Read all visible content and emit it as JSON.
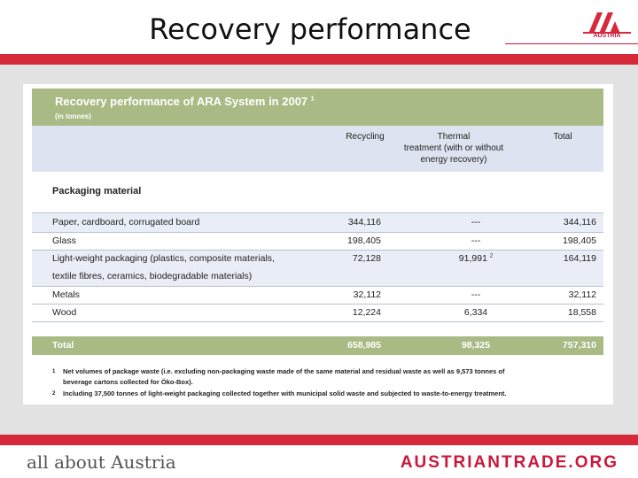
{
  "slide": {
    "title": "Recovery performance",
    "logo_text": "AUSTRIA",
    "footer_left": "all about Austria",
    "footer_right": "AUSTRIANTRADE.ORG"
  },
  "table": {
    "title": "Recovery performance of ARA System in 2007",
    "title_sup": "1",
    "subtitle": "(in tonnes)",
    "headers": {
      "recycling": "Recycling",
      "thermal_line1": "Thermal",
      "thermal_line2": "treatment (with or without",
      "thermal_line3": "energy recovery)",
      "total": "Total"
    },
    "section": "Packaging material",
    "rows": [
      {
        "name": "Paper, cardboard, corrugated board",
        "recycling": "344,116",
        "thermal": "---",
        "total": "344,116"
      },
      {
        "name": "Glass",
        "recycling": "198,405",
        "thermal": "---",
        "total": "198,405"
      },
      {
        "name": "Light-weight packaging (plastics, composite materials,",
        "name2": "textile fibres, ceramics, biodegradable materials)",
        "recycling": "72,128",
        "thermal": "91,991",
        "thermal_sup": "2",
        "total": "164,119"
      },
      {
        "name": "Metals",
        "recycling": "32,112",
        "thermal": "---",
        "total": "32,112"
      },
      {
        "name": "Wood",
        "recycling": "12,224",
        "thermal": "6,334",
        "total": "18,558"
      }
    ],
    "total_row": {
      "name": "Total",
      "recycling": "658,985",
      "thermal": "98,325",
      "total": "757,310"
    },
    "footnotes": [
      {
        "mark": "1",
        "line1": "Net volumes of package waste (i.e. excluding non-packaging waste made of the same material and residual waste as well as 9,573 tonnes of",
        "line2": "beverage cartons collected for Öko-Box)."
      },
      {
        "mark": "2",
        "line1": "Including 37,500 tonnes of light-weight packaging collected together with municipal solid waste and subjected to waste-to-energy treatment."
      }
    ]
  },
  "colors": {
    "brand_red": "#d62a3b",
    "header_green": "#a9ba85",
    "header_blue": "#dde3f0"
  }
}
